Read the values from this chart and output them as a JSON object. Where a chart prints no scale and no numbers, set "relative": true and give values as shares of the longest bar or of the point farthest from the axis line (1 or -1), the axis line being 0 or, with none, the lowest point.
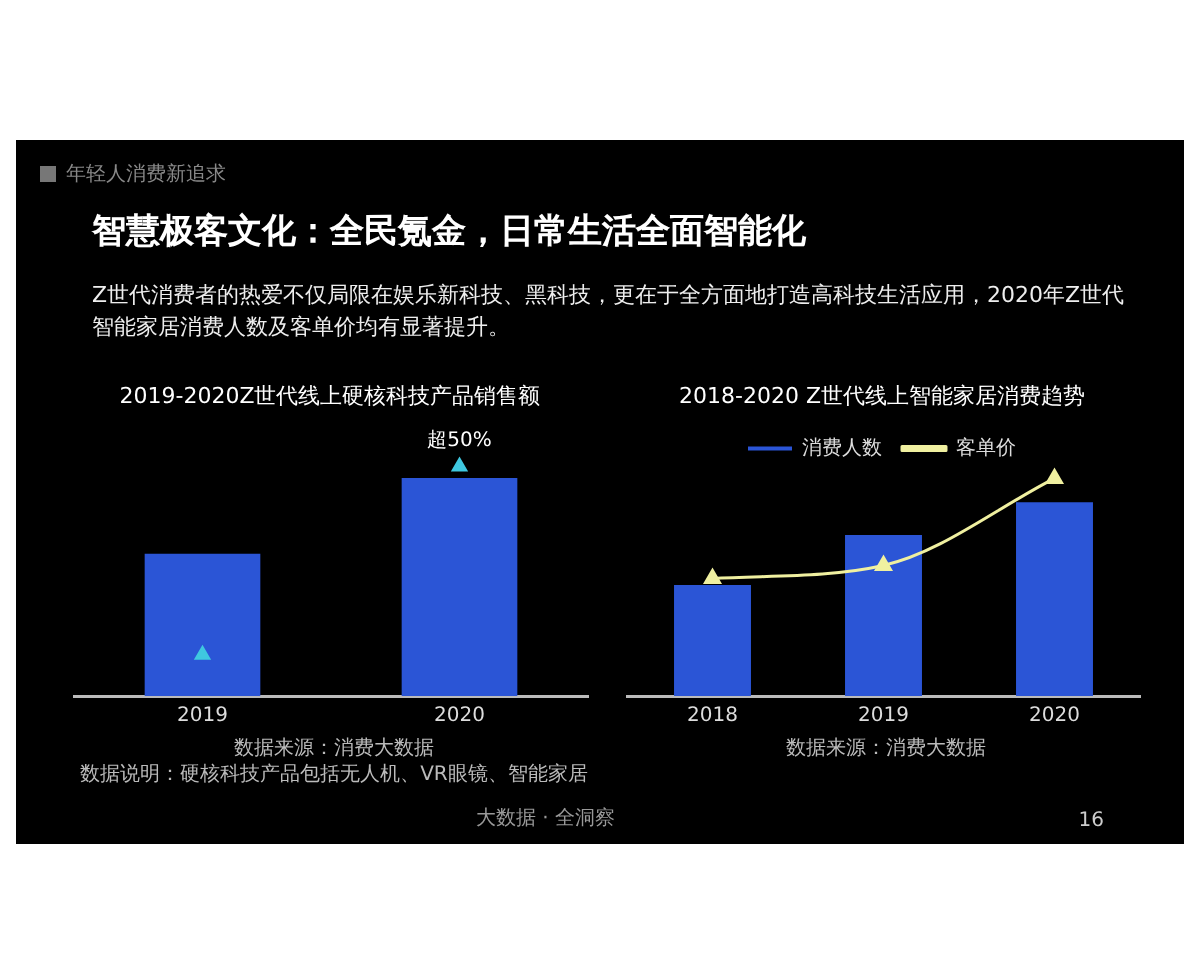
{
  "chart_data": [
    {
      "type": "other",
      "title": "智慧极客文化：全民氪金，日常生活全面智能化",
      "subtitle": "Z世代消费者的热爱不仅局限在娱乐新科技、黑科技，更在于全方面地打造高科技生活应用，2020年Z世代智能家居消费人数及客单价均有显著提升。",
      "annotations": [
        "年轻人消费新追求",
        "大数据 · 全洞察",
        "16"
      ]
    },
    {
      "type": "bar",
      "title": "2019-2020Z世代线上硬核科技产品销售额",
      "categories": [
        "2019",
        "2020"
      ],
      "relative": true,
      "marker": "triangle",
      "legend": false,
      "grid": false,
      "series": [
        {
          "type": "bar",
          "color": "#2b55d6",
          "values": [
            0.62,
            0.95
          ]
        },
        {
          "type": "scatter",
          "color": "#3fc8e0",
          "values": [
            0.18,
            1
          ]
        }
      ],
      "annotations": [
        {
          "text": "超50%",
          "x": "2020",
          "y": 1
        },
        "数据来源：消费大数据",
        "数据说明：硬核科技产品包括无人机、VR眼镜、智能家居"
      ]
    },
    {
      "type": "bar",
      "title": "2018-2020 Z世代线上智能家居消费趋势",
      "categories": [
        "2018",
        "2019",
        "2020"
      ],
      "relative": true,
      "marker": "triangle",
      "legend": "top",
      "grid": false,
      "series": [
        {
          "type": "bar",
          "name": "消费人数",
          "color": "#2b55d6",
          "values": [
            0.51,
            0.74,
            0.89
          ]
        },
        {
          "type": "line",
          "name": "客单价",
          "color": "#f0f0a0",
          "values": [
            0.54,
            0.6,
            1
          ]
        }
      ],
      "annotations": [
        "数据来源：消费大数据"
      ]
    }
  ]
}
